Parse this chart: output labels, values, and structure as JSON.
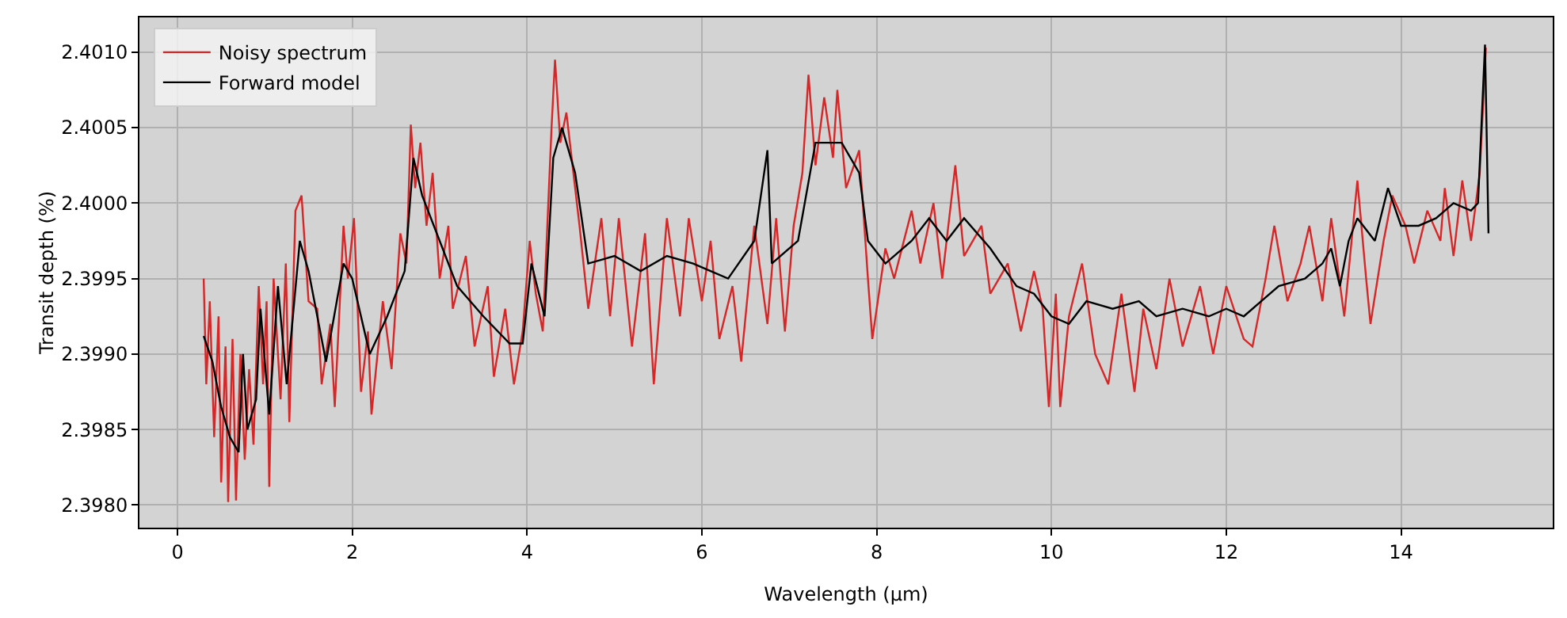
{
  "chart_data": {
    "type": "line",
    "xlabel": "Wavelength (μm)",
    "ylabel": "Transit depth (%)",
    "xlim": [
      -0.435,
      15.735
    ],
    "xticks": [
      0,
      2,
      4,
      6,
      8,
      10,
      12,
      14
    ],
    "ylim": [
      2.39785,
      2.40123
    ],
    "yticks": [
      {
        "value": 2.398,
        "label": "2.3980"
      },
      {
        "value": 2.3985,
        "label": "2.3985"
      },
      {
        "value": 2.399,
        "label": "2.3990"
      },
      {
        "value": 2.3995,
        "label": "2.3995"
      },
      {
        "value": 2.4,
        "label": "2.4000"
      },
      {
        "value": 2.4005,
        "label": "2.4005"
      },
      {
        "value": 2.401,
        "label": "2.4010"
      }
    ],
    "grid": true,
    "legend": "top left",
    "marker": "none",
    "line_style": "solid",
    "series": [
      {
        "name": "Noisy spectrum",
        "color": "#d62728",
        "x": [
          0.3,
          0.33,
          0.37,
          0.42,
          0.47,
          0.5,
          0.55,
          0.58,
          0.63,
          0.67,
          0.72,
          0.77,
          0.82,
          0.87,
          0.93,
          0.98,
          1.02,
          1.05,
          1.1,
          1.18,
          1.24,
          1.28,
          1.35,
          1.42,
          1.5,
          1.6,
          1.65,
          1.75,
          1.8,
          1.9,
          1.95,
          2.02,
          2.1,
          2.18,
          2.22,
          2.35,
          2.45,
          2.55,
          2.62,
          2.67,
          2.72,
          2.78,
          2.85,
          2.92,
          3.0,
          3.1,
          3.15,
          3.3,
          3.4,
          3.55,
          3.62,
          3.75,
          3.85,
          3.95,
          4.03,
          4.1,
          4.18,
          4.28,
          4.32,
          4.38,
          4.45,
          4.6,
          4.7,
          4.85,
          4.95,
          5.05,
          5.2,
          5.35,
          5.45,
          5.6,
          5.75,
          5.85,
          6.0,
          6.1,
          6.2,
          6.35,
          6.45,
          6.6,
          6.75,
          6.85,
          6.95,
          7.05,
          7.15,
          7.22,
          7.3,
          7.4,
          7.5,
          7.55,
          7.65,
          7.8,
          7.9,
          7.95,
          8.1,
          8.2,
          8.4,
          8.5,
          8.65,
          8.75,
          8.9,
          9.0,
          9.2,
          9.3,
          9.5,
          9.65,
          9.8,
          9.9,
          9.97,
          10.05,
          10.1,
          10.2,
          10.35,
          10.5,
          10.65,
          10.8,
          10.95,
          11.05,
          11.2,
          11.35,
          11.5,
          11.7,
          11.85,
          12.0,
          12.2,
          12.3,
          12.45,
          12.55,
          12.7,
          12.85,
          12.95,
          13.1,
          13.2,
          13.35,
          13.5,
          13.6,
          13.65,
          13.8,
          13.9,
          14.05,
          14.15,
          14.3,
          14.45,
          14.5,
          14.6,
          14.7,
          14.8,
          14.9,
          14.97
        ],
        "values": [
          2.3995,
          2.3988,
          2.39935,
          2.39845,
          2.39925,
          2.39815,
          2.39905,
          2.39802,
          2.3991,
          2.39803,
          2.399,
          2.3983,
          2.3989,
          2.3984,
          2.39945,
          2.3988,
          2.39935,
          2.39812,
          2.3995,
          2.3987,
          2.3996,
          2.39855,
          2.39995,
          2.40005,
          2.39935,
          2.3993,
          2.3988,
          2.3992,
          2.39865,
          2.39985,
          2.3995,
          2.3999,
          2.39875,
          2.39915,
          2.3986,
          2.39935,
          2.3989,
          2.3998,
          2.3996,
          2.40052,
          2.4001,
          2.4004,
          2.39985,
          2.4002,
          2.3995,
          2.39985,
          2.3993,
          2.39965,
          2.39905,
          2.39945,
          2.39885,
          2.3993,
          2.3988,
          2.39915,
          2.39975,
          2.3994,
          2.39915,
          2.4005,
          2.40095,
          2.4004,
          2.4006,
          2.39985,
          2.3993,
          2.3999,
          2.39925,
          2.3999,
          2.39905,
          2.3998,
          2.3988,
          2.3999,
          2.39925,
          2.3999,
          2.39935,
          2.39975,
          2.3991,
          2.39945,
          2.39895,
          2.39985,
          2.3992,
          2.3999,
          2.39915,
          2.39985,
          2.4002,
          2.40085,
          2.40025,
          2.4007,
          2.4003,
          2.40075,
          2.4001,
          2.40035,
          2.3995,
          2.3991,
          2.3997,
          2.3995,
          2.39995,
          2.3996,
          2.4,
          2.3995,
          2.40025,
          2.39965,
          2.39985,
          2.3994,
          2.3996,
          2.39915,
          2.39955,
          2.3993,
          2.39865,
          2.3994,
          2.39865,
          2.39925,
          2.3996,
          2.399,
          2.3988,
          2.3994,
          2.39875,
          2.3993,
          2.3989,
          2.3995,
          2.39905,
          2.39945,
          2.399,
          2.39945,
          2.3991,
          2.39905,
          2.3995,
          2.39985,
          2.39935,
          2.3996,
          2.39985,
          2.39935,
          2.3999,
          2.39925,
          2.40015,
          2.3995,
          2.3992,
          2.39975,
          2.40005,
          2.39985,
          2.3996,
          2.39995,
          2.39975,
          2.4001,
          2.39965,
          2.40015,
          2.39975,
          2.4002,
          2.40103
        ]
      },
      {
        "name": "Forward model",
        "color": "#000000",
        "x": [
          0.3,
          0.4,
          0.5,
          0.6,
          0.7,
          0.75,
          0.8,
          0.9,
          0.95,
          1.05,
          1.15,
          1.25,
          1.4,
          1.5,
          1.7,
          1.9,
          2.0,
          2.2,
          2.4,
          2.6,
          2.7,
          2.8,
          3.0,
          3.2,
          3.5,
          3.8,
          3.95,
          4.05,
          4.2,
          4.3,
          4.4,
          4.55,
          4.7,
          5.0,
          5.3,
          5.6,
          5.9,
          6.1,
          6.3,
          6.6,
          6.75,
          6.8,
          7.1,
          7.3,
          7.6,
          7.8,
          7.9,
          8.1,
          8.4,
          8.6,
          8.8,
          9.0,
          9.3,
          9.6,
          9.8,
          10.0,
          10.2,
          10.4,
          10.7,
          11.0,
          11.2,
          11.5,
          11.8,
          12.0,
          12.2,
          12.4,
          12.6,
          12.9,
          13.1,
          13.2,
          13.3,
          13.4,
          13.5,
          13.7,
          13.85,
          14.0,
          14.2,
          14.4,
          14.6,
          14.8,
          14.88,
          14.96,
          15.0
        ],
        "values": [
          2.39912,
          2.39895,
          2.39865,
          2.39845,
          2.39835,
          2.399,
          2.3985,
          2.3987,
          2.3993,
          2.3986,
          2.39945,
          2.3988,
          2.39975,
          2.39955,
          2.39895,
          2.3996,
          2.3995,
          2.399,
          2.39925,
          2.39955,
          2.4003,
          2.40005,
          2.39975,
          2.39945,
          2.39925,
          2.39907,
          2.39907,
          2.3996,
          2.39925,
          2.4003,
          2.4005,
          2.4002,
          2.3996,
          2.39965,
          2.39955,
          2.39965,
          2.3996,
          2.39955,
          2.3995,
          2.39975,
          2.40035,
          2.3996,
          2.39975,
          2.4004,
          2.4004,
          2.4002,
          2.39975,
          2.3996,
          2.39975,
          2.3999,
          2.39975,
          2.3999,
          2.3997,
          2.39945,
          2.3994,
          2.39925,
          2.3992,
          2.39935,
          2.3993,
          2.39935,
          2.39925,
          2.3993,
          2.39925,
          2.3993,
          2.39925,
          2.39935,
          2.39945,
          2.3995,
          2.3996,
          2.3997,
          2.39945,
          2.39975,
          2.3999,
          2.39975,
          2.4001,
          2.39985,
          2.39985,
          2.3999,
          2.4,
          2.39995,
          2.4,
          2.40105,
          2.3998
        ]
      }
    ]
  }
}
